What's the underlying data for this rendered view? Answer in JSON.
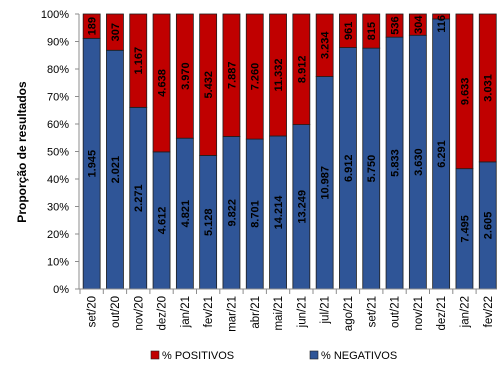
{
  "chart_data": {
    "type": "bar",
    "stacking": "percent",
    "categories": [
      "set/20",
      "out/20",
      "nov/20",
      "dez/20",
      "jan/21",
      "fev/21",
      "mar/21",
      "abr/21",
      "mai/21",
      "jun/21",
      "jul/21",
      "ago/21",
      "set/21",
      "out/21",
      "nov/21",
      "dez/21",
      "jan/22",
      "fev/22"
    ],
    "series": [
      {
        "name": "% POSITIVOS",
        "color": "#C00000",
        "values": [
          189,
          307,
          1167,
          4638,
          3970,
          5432,
          7887,
          7260,
          11332,
          8912,
          3234,
          961,
          815,
          536,
          304,
          116,
          9633,
          3031
        ],
        "data_labels": [
          "189",
          "307",
          "1.167",
          "4.638",
          "3.970",
          "5.432",
          "7.887",
          "7.260",
          "11.332",
          "8.912",
          "3.234",
          "961",
          "815",
          "536",
          "304",
          "116",
          "9.633",
          "3.031"
        ]
      },
      {
        "name": "% NEGATIVOS",
        "color": "#2F5597",
        "values": [
          1945,
          2021,
          2271,
          4612,
          4821,
          5128,
          9822,
          8701,
          14214,
          13249,
          10987,
          6912,
          5750,
          5833,
          3630,
          6291,
          7495,
          2605
        ],
        "data_labels": [
          "1.945",
          "2.021",
          "2.271",
          "4.612",
          "4.821",
          "5.128",
          "9.822",
          "8.701",
          "14.214",
          "13.249",
          "10.987",
          "6.912",
          "5.750",
          "5.833",
          "3.630",
          "6.291",
          "7.495",
          "2.605"
        ]
      }
    ],
    "ylabel": "Proporção de resultados",
    "ylim": [
      0,
      100
    ],
    "yticks": [
      "0%",
      "10%",
      "20%",
      "30%",
      "40%",
      "50%",
      "60%",
      "70%",
      "80%",
      "90%",
      "100%"
    ],
    "grid": false,
    "legend": "bottom"
  }
}
